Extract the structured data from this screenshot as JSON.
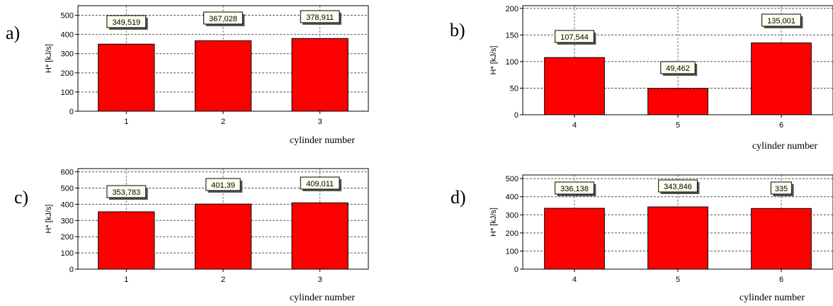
{
  "chart_data": [
    {
      "panel": "a)",
      "type": "bar",
      "categories": [
        "1",
        "2",
        "3"
      ],
      "values": [
        349.519,
        367.028,
        378.911
      ],
      "data_labels": [
        "349,519",
        "367,028",
        "378,911"
      ],
      "ylabel": "H* [kJ/s]",
      "xlabel": "cylinder number",
      "ylim": [
        0,
        550
      ],
      "yticks": [
        "0",
        "100",
        "200",
        "300",
        "400",
        "500"
      ],
      "grid": true,
      "bar_color": "#ff0000"
    },
    {
      "panel": "b)",
      "type": "bar",
      "categories": [
        "4",
        "5",
        "6"
      ],
      "values": [
        107.544,
        49.462,
        135.001
      ],
      "data_labels": [
        "107,544",
        "49,462",
        "135,001"
      ],
      "ylabel": "H* [kJ/s]",
      "xlabel": "cylinder number",
      "ylim": [
        0,
        205
      ],
      "yticks": [
        "0",
        "50",
        "100",
        "150",
        "200"
      ],
      "grid": true,
      "bar_color": "#ff0000"
    },
    {
      "panel": "c)",
      "type": "bar",
      "categories": [
        "1",
        "2",
        "3"
      ],
      "values": [
        353.783,
        401.39,
        409.011
      ],
      "data_labels": [
        "353,783",
        "401,39",
        "409,011"
      ],
      "ylabel": "H* [kJ/s]",
      "xlabel": "cylinder number",
      "ylim": [
        0,
        620
      ],
      "yticks": [
        "0",
        "100",
        "200",
        "300",
        "400",
        "500",
        "600"
      ],
      "grid": true,
      "bar_color": "#ff0000"
    },
    {
      "panel": "d)",
      "type": "bar",
      "categories": [
        "4",
        "5",
        "6"
      ],
      "values": [
        336.138,
        343.846,
        335
      ],
      "data_labels": [
        "336,138",
        "343,846",
        "335"
      ],
      "ylabel": "H* [kJ/s]",
      "xlabel": "cylinder number",
      "ylim": [
        0,
        520
      ],
      "yticks": [
        "0",
        "100",
        "200",
        "300",
        "400",
        "500"
      ],
      "grid": true,
      "bar_color": "#ff0000"
    }
  ]
}
